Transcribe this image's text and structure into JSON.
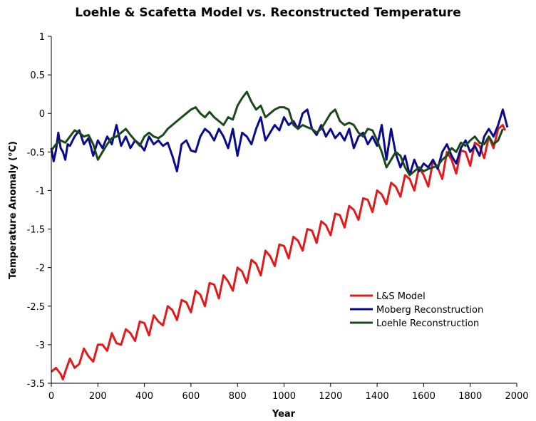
{
  "chart_data": {
    "type": "line",
    "title": "Loehle & Scafetta Model vs. Reconstructed Temperature",
    "xlabel": "Year",
    "ylabel": "Temperature Anomaly (°C)",
    "xlim": [
      0,
      2000
    ],
    "ylim": [
      -3.5,
      1
    ],
    "xticks": [
      0,
      200,
      400,
      600,
      800,
      1000,
      1200,
      1400,
      1600,
      1800,
      2000
    ],
    "yticks": [
      1,
      0.5,
      0,
      -0.5,
      -1,
      -1.5,
      -2,
      -2.5,
      -3,
      -3.5
    ],
    "ytick_labels": [
      "1",
      "0.5",
      "0",
      "-0.5",
      "-1",
      "-1.5",
      "-2",
      "-2.5",
      "-3",
      "-3.5"
    ],
    "grid": false,
    "legend_position": "lower-right",
    "series": [
      {
        "name": "L&S Model",
        "color": "#e31a1c",
        "x": [
          0,
          20,
          40,
          50,
          60,
          80,
          100,
          120,
          140,
          160,
          180,
          200,
          220,
          240,
          260,
          280,
          300,
          320,
          340,
          360,
          380,
          400,
          420,
          440,
          460,
          480,
          500,
          520,
          540,
          560,
          580,
          600,
          620,
          640,
          660,
          680,
          700,
          720,
          740,
          760,
          780,
          800,
          820,
          840,
          860,
          880,
          900,
          920,
          940,
          960,
          980,
          1000,
          1020,
          1040,
          1060,
          1080,
          1100,
          1120,
          1140,
          1160,
          1180,
          1200,
          1220,
          1240,
          1260,
          1280,
          1300,
          1320,
          1340,
          1360,
          1380,
          1400,
          1420,
          1440,
          1460,
          1480,
          1500,
          1520,
          1540,
          1560,
          1580,
          1600,
          1620,
          1640,
          1660,
          1680,
          1700,
          1720,
          1740,
          1760,
          1780,
          1800,
          1820,
          1840,
          1860,
          1880,
          1900,
          1920,
          1940,
          1950
        ],
        "y": [
          -3.35,
          -3.3,
          -3.38,
          -3.45,
          -3.35,
          -3.18,
          -3.3,
          -3.25,
          -3.05,
          -3.15,
          -3.22,
          -3.0,
          -3.0,
          -3.08,
          -2.85,
          -2.98,
          -3.0,
          -2.8,
          -2.85,
          -2.95,
          -2.7,
          -2.72,
          -2.88,
          -2.62,
          -2.7,
          -2.75,
          -2.5,
          -2.55,
          -2.68,
          -2.42,
          -2.45,
          -2.58,
          -2.3,
          -2.35,
          -2.5,
          -2.2,
          -2.22,
          -2.4,
          -2.1,
          -2.18,
          -2.3,
          -2.0,
          -2.05,
          -2.2,
          -1.9,
          -1.95,
          -2.1,
          -1.78,
          -1.85,
          -1.98,
          -1.7,
          -1.72,
          -1.88,
          -1.6,
          -1.65,
          -1.78,
          -1.5,
          -1.52,
          -1.68,
          -1.4,
          -1.45,
          -1.58,
          -1.3,
          -1.32,
          -1.48,
          -1.2,
          -1.25,
          -1.38,
          -1.1,
          -1.12,
          -1.28,
          -1.0,
          -1.05,
          -1.18,
          -0.9,
          -0.95,
          -1.08,
          -0.8,
          -0.85,
          -1.0,
          -0.7,
          -0.8,
          -0.95,
          -0.62,
          -0.7,
          -0.85,
          -0.5,
          -0.6,
          -0.78,
          -0.48,
          -0.5,
          -0.68,
          -0.38,
          -0.42,
          -0.58,
          -0.3,
          -0.45,
          -0.2,
          -0.15,
          -0.22
        ]
      },
      {
        "name": "Moberg Reconstruction",
        "color": "#0a0a8c",
        "x": [
          0,
          10,
          20,
          30,
          40,
          50,
          60,
          70,
          80,
          100,
          120,
          140,
          160,
          180,
          200,
          220,
          240,
          260,
          280,
          300,
          320,
          340,
          360,
          380,
          400,
          420,
          440,
          460,
          480,
          500,
          520,
          540,
          560,
          580,
          600,
          620,
          640,
          660,
          680,
          700,
          720,
          740,
          760,
          780,
          800,
          820,
          840,
          860,
          880,
          900,
          920,
          940,
          960,
          980,
          1000,
          1020,
          1040,
          1060,
          1080,
          1100,
          1120,
          1140,
          1160,
          1180,
          1200,
          1220,
          1240,
          1260,
          1280,
          1300,
          1320,
          1340,
          1360,
          1380,
          1400,
          1420,
          1440,
          1460,
          1480,
          1500,
          1520,
          1540,
          1560,
          1580,
          1600,
          1620,
          1640,
          1660,
          1680,
          1700,
          1720,
          1740,
          1760,
          1780,
          1800,
          1820,
          1840,
          1860,
          1880,
          1900,
          1920,
          1940,
          1960
        ],
        "y": [
          -0.45,
          -0.62,
          -0.48,
          -0.25,
          -0.45,
          -0.5,
          -0.6,
          -0.4,
          -0.42,
          -0.3,
          -0.22,
          -0.4,
          -0.32,
          -0.55,
          -0.35,
          -0.45,
          -0.3,
          -0.4,
          -0.15,
          -0.42,
          -0.3,
          -0.45,
          -0.35,
          -0.4,
          -0.48,
          -0.3,
          -0.4,
          -0.35,
          -0.42,
          -0.38,
          -0.55,
          -0.75,
          -0.4,
          -0.35,
          -0.48,
          -0.5,
          -0.3,
          -0.2,
          -0.25,
          -0.35,
          -0.2,
          -0.3,
          -0.45,
          -0.2,
          -0.55,
          -0.25,
          -0.3,
          -0.4,
          -0.2,
          -0.05,
          -0.35,
          -0.25,
          -0.15,
          -0.22,
          -0.05,
          -0.15,
          -0.1,
          -0.2,
          -0.0,
          0.05,
          -0.2,
          -0.28,
          -0.15,
          -0.3,
          -0.2,
          -0.32,
          -0.25,
          -0.35,
          -0.2,
          -0.45,
          -0.3,
          -0.25,
          -0.4,
          -0.3,
          -0.42,
          -0.15,
          -0.6,
          -0.2,
          -0.52,
          -0.7,
          -0.55,
          -0.8,
          -0.6,
          -0.75,
          -0.65,
          -0.7,
          -0.6,
          -0.72,
          -0.5,
          -0.4,
          -0.55,
          -0.65,
          -0.45,
          -0.35,
          -0.5,
          -0.42,
          -0.55,
          -0.3,
          -0.2,
          -0.3,
          -0.15,
          0.05,
          -0.18
        ]
      },
      {
        "name": "Loehle Reconstruction",
        "color": "#1a4a1a",
        "x": [
          0,
          20,
          40,
          60,
          80,
          100,
          120,
          140,
          160,
          180,
          200,
          220,
          240,
          260,
          280,
          300,
          320,
          340,
          360,
          380,
          400,
          420,
          440,
          460,
          480,
          500,
          520,
          540,
          560,
          580,
          600,
          620,
          640,
          660,
          680,
          700,
          720,
          740,
          760,
          780,
          800,
          820,
          840,
          860,
          880,
          900,
          920,
          940,
          960,
          980,
          1000,
          1020,
          1040,
          1060,
          1080,
          1100,
          1120,
          1140,
          1160,
          1180,
          1200,
          1220,
          1240,
          1260,
          1280,
          1300,
          1320,
          1340,
          1360,
          1380,
          1400,
          1420,
          1440,
          1460,
          1480,
          1500,
          1520,
          1540,
          1560,
          1580,
          1600,
          1620,
          1640,
          1660,
          1680,
          1700,
          1720,
          1740,
          1760,
          1780,
          1800,
          1820,
          1840,
          1860,
          1880,
          1900,
          1920,
          1940
        ],
        "y": [
          -0.48,
          -0.4,
          -0.35,
          -0.38,
          -0.3,
          -0.22,
          -0.25,
          -0.3,
          -0.28,
          -0.4,
          -0.6,
          -0.5,
          -0.4,
          -0.32,
          -0.3,
          -0.25,
          -0.2,
          -0.28,
          -0.35,
          -0.42,
          -0.3,
          -0.25,
          -0.3,
          -0.32,
          -0.28,
          -0.2,
          -0.15,
          -0.1,
          -0.05,
          0.0,
          0.05,
          0.08,
          0.0,
          -0.05,
          0.02,
          -0.05,
          -0.1,
          -0.15,
          -0.05,
          -0.08,
          0.1,
          0.2,
          0.28,
          0.15,
          0.05,
          0.1,
          -0.05,
          0.0,
          0.05,
          0.08,
          0.08,
          0.05,
          -0.15,
          -0.2,
          -0.15,
          -0.18,
          -0.2,
          -0.25,
          -0.2,
          -0.1,
          0.0,
          0.05,
          -0.1,
          -0.15,
          -0.12,
          -0.15,
          -0.25,
          -0.3,
          -0.2,
          -0.22,
          -0.35,
          -0.5,
          -0.7,
          -0.6,
          -0.5,
          -0.55,
          -0.7,
          -0.8,
          -0.75,
          -0.7,
          -0.75,
          -0.72,
          -0.7,
          -0.68,
          -0.6,
          -0.55,
          -0.45,
          -0.5,
          -0.38,
          -0.42,
          -0.35,
          -0.3,
          -0.38,
          -0.4,
          -0.3,
          -0.4,
          -0.35,
          -0.2
        ]
      }
    ]
  }
}
